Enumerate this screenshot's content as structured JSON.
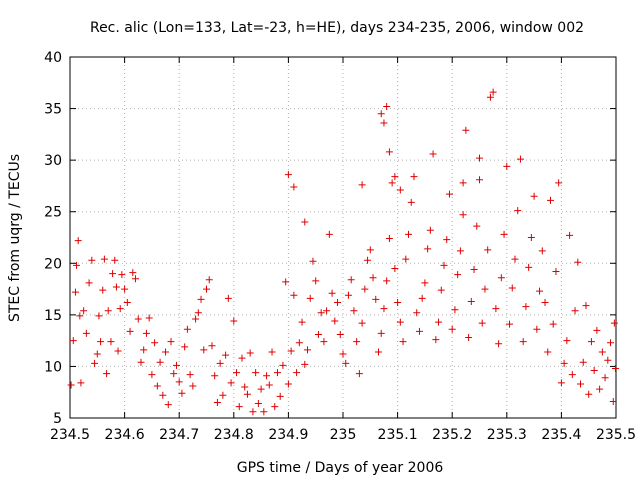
{
  "chart_data": {
    "type": "scatter",
    "title": "Rec. alic (Lon=133, Lat=-23, h=HE), days 234-235, 2006, window 002",
    "xlabel": "GPS time / Days of year 2006",
    "ylabel": "STEC from uqrg / TECUs",
    "xlim": [
      234.5,
      235.5
    ],
    "ylim": [
      5,
      40
    ],
    "x_ticks": [
      "234.5",
      "234.6",
      "234.7",
      "234.8",
      "234.9",
      "235",
      "235.1",
      "235.2",
      "235.3",
      "235.4",
      "235.5"
    ],
    "y_ticks": [
      "5",
      "10",
      "15",
      "20",
      "25",
      "30",
      "35",
      "40"
    ],
    "grid": true,
    "legend": "none",
    "marker": "plus",
    "color": "#e00000",
    "series": [
      {
        "points": [
          [
            234.502,
            8.2
          ],
          [
            234.506,
            12.5
          ],
          [
            234.51,
            17.2
          ],
          [
            234.512,
            19.8
          ],
          [
            234.515,
            22.2
          ],
          [
            234.518,
            14.9
          ],
          [
            234.52,
            8.4
          ],
          [
            234.525,
            15.4
          ],
          [
            234.53,
            13.2
          ],
          [
            234.535,
            18.1
          ],
          [
            234.54,
            20.3
          ],
          [
            234.545,
            10.3
          ],
          [
            234.55,
            11.2
          ],
          [
            234.553,
            14.9
          ],
          [
            234.556,
            12.4
          ],
          [
            234.56,
            17.4
          ],
          [
            234.563,
            20.4
          ],
          [
            234.567,
            9.3
          ],
          [
            234.57,
            15.4
          ],
          [
            234.575,
            12.4
          ],
          [
            234.578,
            19.0
          ],
          [
            234.582,
            20.3
          ],
          [
            234.585,
            17.7
          ],
          [
            234.588,
            11.5
          ],
          [
            234.592,
            15.6
          ],
          [
            234.595,
            18.9
          ],
          [
            234.6,
            17.5
          ],
          [
            234.605,
            16.2
          ],
          [
            234.61,
            13.4
          ],
          [
            234.615,
            19.1
          ],
          [
            234.62,
            18.5
          ],
          [
            234.625,
            14.6
          ],
          [
            234.63,
            10.4
          ],
          [
            234.635,
            11.6
          ],
          [
            234.64,
            13.2
          ],
          [
            234.645,
            14.7
          ],
          [
            234.65,
            9.2
          ],
          [
            234.655,
            12.3
          ],
          [
            234.66,
            8.1
          ],
          [
            234.665,
            10.4
          ],
          [
            234.67,
            7.2
          ],
          [
            234.675,
            11.4
          ],
          [
            234.68,
            6.3
          ],
          [
            234.685,
            12.4
          ],
          [
            234.69,
            9.3
          ],
          [
            234.695,
            10.1
          ],
          [
            234.7,
            8.5
          ],
          [
            234.705,
            7.4
          ],
          [
            234.71,
            11.9
          ],
          [
            234.715,
            13.6
          ],
          [
            234.72,
            9.2
          ],
          [
            234.725,
            8.1
          ],
          [
            234.73,
            14.6
          ],
          [
            234.735,
            15.2
          ],
          [
            234.74,
            16.5
          ],
          [
            234.745,
            11.6
          ],
          [
            234.75,
            17.5
          ],
          [
            234.755,
            18.4
          ],
          [
            234.76,
            12.0
          ],
          [
            234.765,
            9.1
          ],
          [
            234.77,
            6.5
          ],
          [
            234.775,
            10.3
          ],
          [
            234.78,
            7.2
          ],
          [
            234.785,
            11.1
          ],
          [
            234.79,
            16.6
          ],
          [
            234.795,
            8.4
          ],
          [
            234.8,
            14.4
          ],
          [
            234.805,
            9.4
          ],
          [
            234.81,
            6.1
          ],
          [
            234.815,
            10.8
          ],
          [
            234.82,
            8.0
          ],
          [
            234.825,
            7.3
          ],
          [
            234.83,
            11.3
          ],
          [
            234.835,
            5.6
          ],
          [
            234.84,
            9.4
          ],
          [
            234.845,
            6.4
          ],
          [
            234.85,
            7.8
          ],
          [
            234.855,
            5.6
          ],
          [
            234.86,
            9.1
          ],
          [
            234.865,
            8.2
          ],
          [
            234.87,
            11.4
          ],
          [
            234.875,
            6.1
          ],
          [
            234.88,
            9.4
          ],
          [
            234.885,
            7.1
          ],
          [
            234.89,
            10.1
          ],
          [
            234.895,
            18.2
          ],
          [
            234.9,
            8.3
          ],
          [
            234.905,
            11.5
          ],
          [
            234.91,
            16.9
          ],
          [
            234.915,
            9.4
          ],
          [
            234.92,
            12.3
          ],
          [
            234.925,
            14.3
          ],
          [
            234.93,
            10.2
          ],
          [
            234.935,
            11.6
          ],
          [
            234.94,
            16.6
          ],
          [
            234.945,
            20.2
          ],
          [
            234.95,
            18.3
          ],
          [
            234.955,
            13.1
          ],
          [
            234.96,
            15.2
          ],
          [
            234.965,
            12.4
          ],
          [
            234.97,
            15.4
          ],
          [
            234.975,
            22.8
          ],
          [
            234.98,
            17.1
          ],
          [
            234.985,
            14.4
          ],
          [
            234.99,
            16.2
          ],
          [
            234.995,
            13.1
          ],
          [
            235.0,
            11.2
          ],
          [
            235.005,
            10.3
          ],
          [
            235.01,
            16.9
          ],
          [
            235.015,
            18.4
          ],
          [
            235.02,
            15.4
          ],
          [
            235.025,
            12.4
          ],
          [
            235.03,
            9.3
          ],
          [
            235.035,
            14.2
          ],
          [
            235.04,
            17.5
          ],
          [
            235.045,
            20.3
          ],
          [
            235.05,
            21.3
          ],
          [
            235.055,
            18.6
          ],
          [
            235.06,
            16.5
          ],
          [
            235.065,
            11.4
          ],
          [
            235.07,
            13.2
          ],
          [
            235.075,
            15.6
          ],
          [
            235.08,
            18.3
          ],
          [
            235.085,
            22.4
          ],
          [
            235.09,
            27.8
          ],
          [
            235.095,
            19.5
          ],
          [
            235.1,
            16.2
          ],
          [
            235.105,
            14.3
          ],
          [
            235.11,
            12.4
          ],
          [
            235.115,
            20.4
          ],
          [
            235.12,
            22.8
          ],
          [
            235.125,
            25.9
          ],
          [
            235.13,
            28.4
          ],
          [
            235.135,
            15.2
          ],
          [
            235.14,
            13.4
          ],
          [
            235.145,
            16.6
          ],
          [
            235.15,
            18.1
          ],
          [
            235.155,
            21.4
          ],
          [
            235.16,
            23.2
          ],
          [
            235.165,
            30.6
          ],
          [
            235.17,
            12.6
          ],
          [
            235.175,
            14.3
          ],
          [
            235.18,
            17.4
          ],
          [
            235.185,
            19.8
          ],
          [
            235.19,
            22.3
          ],
          [
            235.195,
            26.7
          ],
          [
            235.2,
            13.6
          ],
          [
            235.205,
            15.5
          ],
          [
            235.21,
            18.9
          ],
          [
            235.215,
            21.2
          ],
          [
            235.22,
            24.7
          ],
          [
            235.225,
            32.9
          ],
          [
            235.23,
            12.8
          ],
          [
            235.235,
            16.3
          ],
          [
            235.24,
            19.4
          ],
          [
            235.245,
            23.6
          ],
          [
            235.25,
            30.2
          ],
          [
            235.255,
            14.2
          ],
          [
            235.26,
            17.5
          ],
          [
            235.265,
            21.3
          ],
          [
            235.27,
            36.1
          ],
          [
            235.275,
            36.6
          ],
          [
            235.28,
            15.6
          ],
          [
            235.285,
            12.2
          ],
          [
            235.29,
            18.6
          ],
          [
            235.295,
            22.8
          ],
          [
            235.3,
            29.4
          ],
          [
            235.305,
            14.1
          ],
          [
            235.31,
            17.6
          ],
          [
            235.315,
            20.4
          ],
          [
            235.32,
            25.1
          ],
          [
            235.325,
            30.1
          ],
          [
            235.33,
            12.4
          ],
          [
            235.335,
            15.8
          ],
          [
            235.34,
            19.6
          ],
          [
            235.345,
            22.5
          ],
          [
            235.35,
            26.5
          ],
          [
            235.355,
            13.6
          ],
          [
            235.36,
            17.3
          ],
          [
            235.365,
            21.2
          ],
          [
            235.37,
            16.2
          ],
          [
            235.375,
            11.4
          ],
          [
            235.38,
            26.1
          ],
          [
            235.385,
            14.1
          ],
          [
            235.39,
            19.2
          ],
          [
            235.395,
            27.8
          ],
          [
            235.4,
            8.4
          ],
          [
            235.405,
            10.3
          ],
          [
            235.41,
            12.5
          ],
          [
            235.415,
            22.7
          ],
          [
            235.42,
            9.2
          ],
          [
            235.425,
            15.4
          ],
          [
            235.43,
            20.1
          ],
          [
            235.435,
            8.3
          ],
          [
            235.44,
            10.4
          ],
          [
            235.445,
            15.9
          ],
          [
            235.45,
            7.3
          ],
          [
            235.455,
            12.4
          ],
          [
            235.46,
            9.6
          ],
          [
            235.465,
            13.5
          ],
          [
            235.47,
            7.8
          ],
          [
            235.475,
            11.4
          ],
          [
            235.48,
            8.9
          ],
          [
            235.485,
            10.6
          ],
          [
            235.49,
            12.3
          ],
          [
            235.495,
            6.6
          ],
          [
            235.497,
            14.2
          ],
          [
            235.499,
            9.8
          ],
          [
            235.07,
            34.5
          ],
          [
            235.075,
            33.6
          ],
          [
            235.08,
            35.2
          ],
          [
            235.085,
            30.8
          ],
          [
            235.095,
            28.4
          ],
          [
            235.105,
            27.1
          ],
          [
            234.9,
            28.6
          ],
          [
            234.91,
            27.4
          ],
          [
            234.93,
            24.0
          ],
          [
            235.035,
            27.6
          ],
          [
            235.22,
            27.8
          ],
          [
            235.25,
            28.1
          ]
        ]
      }
    ]
  }
}
